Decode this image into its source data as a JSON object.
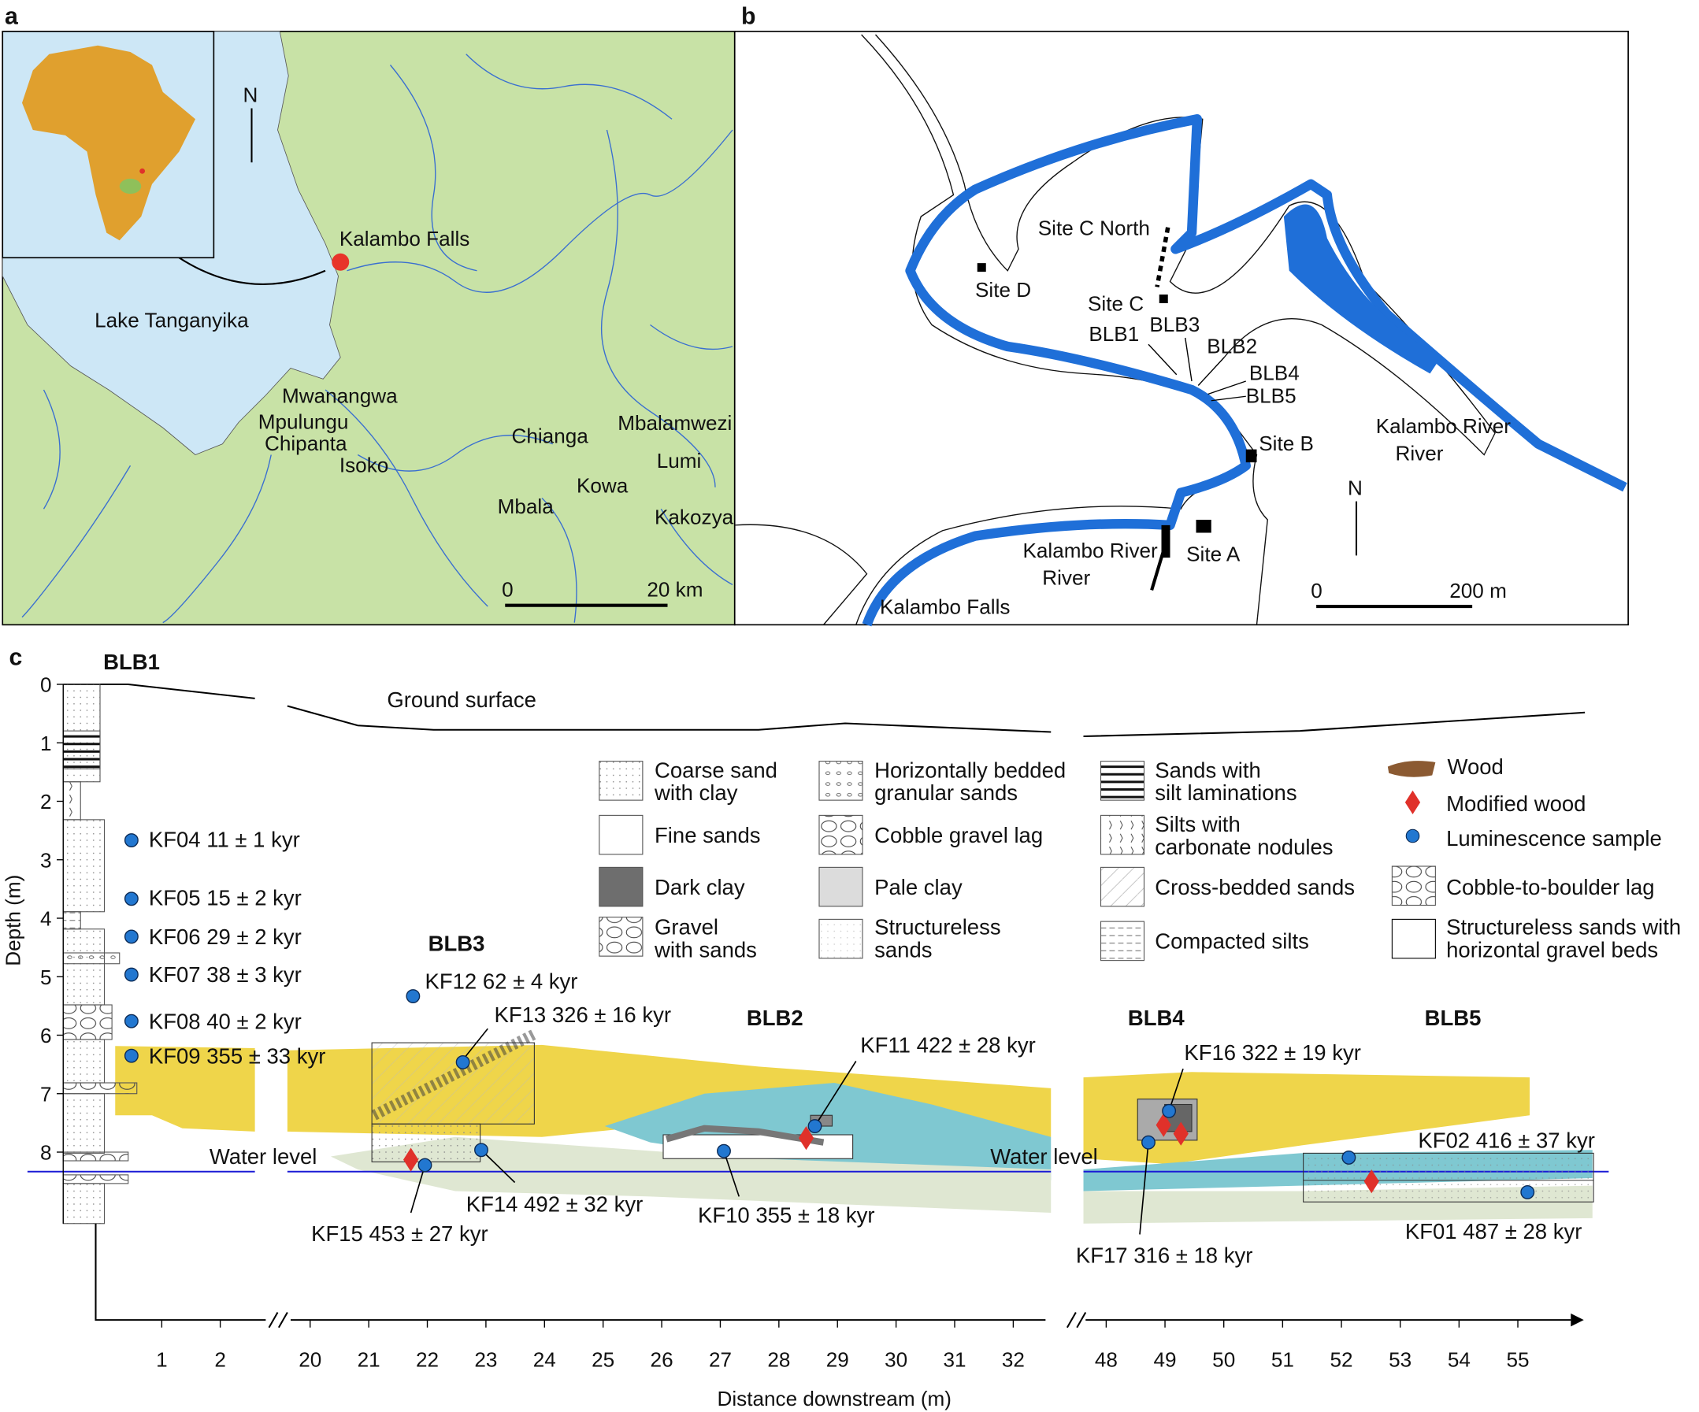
{
  "panels": {
    "a": "a",
    "b": "b",
    "c": "c"
  },
  "colors": {
    "land": "#c8e2a6",
    "lake": "#cde7f6",
    "africa": "#e0a02e",
    "river_blue": "#1f6fd8",
    "yellow": "#efd54a",
    "teal": "#7fc8d1",
    "sage": "#dfe7d2",
    "water_level": "#1a1ad6",
    "modified_wood": "#e0312a",
    "luminescence": "#2277d0",
    "wood": "#8b5a32"
  },
  "map_a": {
    "north": "N",
    "places": [
      "Kalambo Falls",
      "Lake Tanganyika",
      "Mwanangwa",
      "Mpulungu",
      "Chipanta",
      "Isoko",
      "Chianga",
      "Mbalamwezi",
      "Lumi",
      "Kowa",
      "Mbala",
      "Kakozya"
    ],
    "scale": {
      "start": "0",
      "end": "20 km"
    }
  },
  "map_b": {
    "north": "N",
    "places": [
      "Site C North",
      "Site D",
      "Site C",
      "BLB1",
      "BLB3",
      "BLB2",
      "BLB4",
      "BLB5",
      "Site B",
      "Site A",
      "Kalambo River",
      "Kalambo River",
      "Kalambo Falls"
    ],
    "scale": {
      "start": "0",
      "end": "200 m"
    }
  },
  "section_c": {
    "sections": [
      "BLB1",
      "BLB3",
      "BLB2",
      "BLB4",
      "BLB5"
    ],
    "ground_surface": "Ground surface",
    "water_level": "Water level",
    "y_axis": {
      "label": "Depth (m)",
      "ticks": [
        "0",
        "1",
        "2",
        "3",
        "4",
        "5",
        "6",
        "7",
        "8"
      ]
    },
    "x_axis": {
      "label": "Distance downstream (m)",
      "ticks_a": [
        "1",
        "2"
      ],
      "ticks_b": [
        "20",
        "21",
        "22",
        "23",
        "24",
        "25",
        "26",
        "27",
        "28",
        "29",
        "30",
        "31",
        "32"
      ],
      "ticks_c": [
        "48",
        "49",
        "50",
        "51",
        "52",
        "53",
        "54",
        "55"
      ]
    },
    "samples": [
      "KF04 11 ± 1 kyr",
      "KF05 15 ± 2 kyr",
      "KF06 29 ± 2 kyr",
      "KF07 38 ± 3 kyr",
      "KF08 40 ± 2 kyr",
      "KF09 355 ± 33 kyr",
      "KF12 62 ± 4 kyr",
      "KF13 326 ± 16 kyr",
      "KF14 492 ± 32 kyr",
      "KF15 453 ± 27 kyr",
      "KF11 422 ± 28 kyr",
      "KF10 355 ± 18 kyr",
      "KF16 322 ± 19 kyr",
      "KF17 316 ± 18 kyr",
      "KF02 416 ± 37 kyr",
      "KF01 487 ± 28 kyr"
    ],
    "legend": [
      [
        "Coarse sand",
        "with clay"
      ],
      [
        "Fine sands"
      ],
      [
        "Dark clay"
      ],
      [
        "Gravel",
        "with sands"
      ],
      [
        "Horizontally bedded",
        "granular sands"
      ],
      [
        "Cobble gravel lag"
      ],
      [
        "Pale clay"
      ],
      [
        "Structureless",
        "sands"
      ],
      [
        "Sands with",
        "silt laminations"
      ],
      [
        "Silts with",
        "carbonate nodules"
      ],
      [
        "Cross-bedded sands"
      ],
      [
        "Compacted silts"
      ],
      [
        "Wood"
      ],
      [
        "Modified wood"
      ],
      [
        "Luminescence sample"
      ],
      [
        "Cobble-to-boulder lag"
      ],
      [
        "Structureless sands with",
        "horizontal gravel beds"
      ]
    ]
  }
}
